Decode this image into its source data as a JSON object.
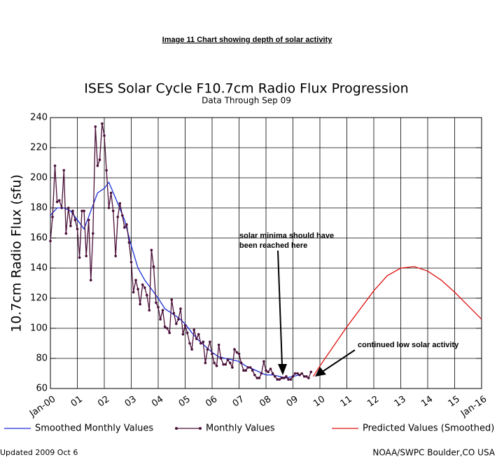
{
  "header": {
    "title": "Image 11 Chart showing depth of solar activity"
  },
  "chart_data": {
    "type": "line",
    "title": "ISES Solar Cycle F10.7cm Radio Flux Progression",
    "subtitle": "Data Through Sep 09",
    "y_label": "10.7cm Radio Flux (sfu)",
    "xlim": [
      2000,
      2016
    ],
    "ylim": [
      60,
      240
    ],
    "xticks": [
      {
        "value": 2000,
        "label": "Jan-00"
      },
      {
        "value": 2001,
        "label": "01"
      },
      {
        "value": 2002,
        "label": "02"
      },
      {
        "value": 2003,
        "label": "03"
      },
      {
        "value": 2004,
        "label": "04"
      },
      {
        "value": 2005,
        "label": "05"
      },
      {
        "value": 2006,
        "label": "06"
      },
      {
        "value": 2007,
        "label": "07"
      },
      {
        "value": 2008,
        "label": "08"
      },
      {
        "value": 2009,
        "label": "09"
      },
      {
        "value": 2010,
        "label": "10"
      },
      {
        "value": 2011,
        "label": "11"
      },
      {
        "value": 2012,
        "label": "12"
      },
      {
        "value": 2013,
        "label": "13"
      },
      {
        "value": 2014,
        "label": "14"
      },
      {
        "value": 2015,
        "label": "15"
      },
      {
        "value": 2016,
        "label": "Jan-16"
      }
    ],
    "yticks": [
      60,
      80,
      100,
      120,
      140,
      160,
      180,
      200,
      220,
      240
    ],
    "grid": true,
    "series": [
      {
        "name": "Smoothed Monthly Values",
        "color": "#1a2ed6",
        "marker": false,
        "x": [
          2000,
          2000.25,
          2000.5,
          2000.75,
          2001,
          2001.25,
          2001.5,
          2001.75,
          2002,
          2002.17,
          2002.5,
          2002.75,
          2003,
          2003.25,
          2003.5,
          2003.75,
          2004,
          2004.25,
          2004.5,
          2004.75,
          2005,
          2005.25,
          2005.5,
          2005.75,
          2006,
          2006.25,
          2006.5,
          2006.75,
          2007,
          2007.25,
          2007.5,
          2007.75,
          2008,
          2008.25,
          2008.5,
          2008.75,
          2009,
          2009.25
        ],
        "values": [
          175,
          180,
          180,
          178,
          172,
          166,
          178,
          190,
          193,
          197,
          183,
          172,
          155,
          140,
          132,
          126,
          120,
          113,
          110,
          107,
          103,
          97,
          92,
          88,
          84,
          81,
          80,
          79,
          78,
          75,
          73,
          71,
          69,
          69,
          68,
          67,
          68,
          69
        ]
      },
      {
        "name": "Monthly Values",
        "color": "#4a1038",
        "marker": true,
        "x": [
          2000,
          2000.08,
          2000.17,
          2000.25,
          2000.33,
          2000.42,
          2000.5,
          2000.58,
          2000.67,
          2000.75,
          2000.83,
          2000.92,
          2001,
          2001.08,
          2001.17,
          2001.25,
          2001.33,
          2001.42,
          2001.5,
          2001.58,
          2001.67,
          2001.75,
          2001.83,
          2001.92,
          2002,
          2002.08,
          2002.17,
          2002.25,
          2002.33,
          2002.42,
          2002.5,
          2002.58,
          2002.67,
          2002.75,
          2002.83,
          2002.92,
          2003,
          2003.08,
          2003.17,
          2003.25,
          2003.33,
          2003.42,
          2003.5,
          2003.58,
          2003.67,
          2003.75,
          2003.83,
          2003.92,
          2004,
          2004.08,
          2004.17,
          2004.25,
          2004.33,
          2004.42,
          2004.5,
          2004.58,
          2004.67,
          2004.75,
          2004.83,
          2004.92,
          2005,
          2005.08,
          2005.17,
          2005.25,
          2005.33,
          2005.42,
          2005.5,
          2005.58,
          2005.67,
          2005.75,
          2005.83,
          2005.92,
          2006,
          2006.08,
          2006.17,
          2006.25,
          2006.33,
          2006.42,
          2006.5,
          2006.58,
          2006.67,
          2006.75,
          2006.83,
          2006.92,
          2007,
          2007.08,
          2007.17,
          2007.25,
          2007.33,
          2007.42,
          2007.5,
          2007.58,
          2007.67,
          2007.75,
          2007.83,
          2007.92,
          2008,
          2008.08,
          2008.17,
          2008.25,
          2008.33,
          2008.42,
          2008.5,
          2008.58,
          2008.67,
          2008.75,
          2008.83,
          2008.92,
          2009,
          2009.08,
          2009.17,
          2009.25,
          2009.33,
          2009.42,
          2009.5,
          2009.58,
          2009.67
        ],
        "values": [
          158,
          174,
          208,
          184,
          185,
          180,
          205,
          163,
          180,
          168,
          178,
          172,
          166,
          147,
          178,
          178,
          148,
          172,
          132,
          163,
          234,
          208,
          212,
          236,
          228,
          205,
          180,
          190,
          178,
          148,
          174,
          183,
          175,
          167,
          169,
          157,
          144,
          124,
          132,
          126,
          116,
          129,
          127,
          122,
          112,
          152,
          141,
          117,
          114,
          106,
          112,
          101,
          100,
          97,
          119,
          110,
          103,
          106,
          113,
          96,
          102,
          97,
          90,
          86,
          99,
          93,
          96,
          90,
          91,
          77,
          86,
          91,
          83,
          77,
          75,
          89,
          80,
          76,
          76,
          79,
          77,
          74,
          86,
          84,
          83,
          77,
          72,
          72,
          74,
          74,
          72,
          69,
          67,
          67,
          70,
          78,
          72,
          71,
          73,
          70,
          68,
          66,
          66,
          67,
          67,
          68,
          66,
          66,
          68,
          70,
          70,
          69,
          70,
          68,
          68,
          67,
          71
        ]
      },
      {
        "name": "Predicted Values (Smoothed)",
        "color": "#e01010",
        "marker": false,
        "x": [
          2009.75,
          2010,
          2010.5,
          2011,
          2011.5,
          2012,
          2012.5,
          2013,
          2013.5,
          2014,
          2014.5,
          2015,
          2015.5,
          2016
        ],
        "values": [
          68,
          75,
          88,
          101,
          113,
          125,
          135,
          140,
          141,
          138,
          132,
          124,
          115,
          106
        ]
      }
    ],
    "annotations": [
      {
        "lines": [
          "solar minima should have",
          "been reached here"
        ]
      },
      {
        "lines": [
          "continued low solar activity"
        ]
      }
    ]
  },
  "footer": {
    "updated": "Updated 2009 Oct  6",
    "source": "NOAA/SWPC Boulder,CO USA"
  }
}
